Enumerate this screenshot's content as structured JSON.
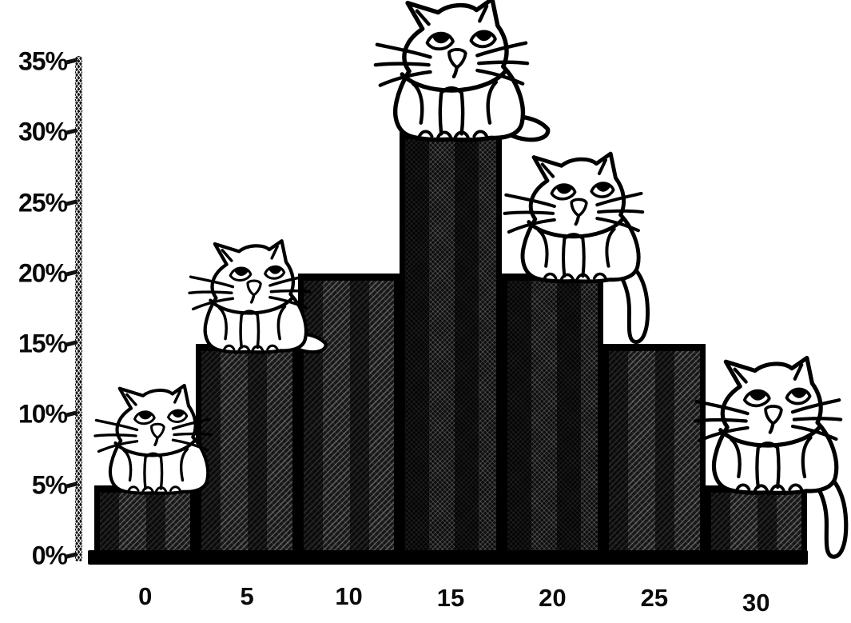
{
  "page": {
    "background_hex": "#ffffff",
    "ink_hex": "#0a0a0a",
    "style_note": "black-and-white photocopied halftone bar chart with cartoon cats sitting on bars"
  },
  "chart_data": {
    "type": "bar",
    "title": "",
    "xlabel": "",
    "ylabel": "",
    "categories": [
      "0",
      "5",
      "10",
      "15",
      "20",
      "25",
      "30"
    ],
    "values": [
      5,
      15,
      20,
      30,
      20,
      15,
      5
    ],
    "unit": "%",
    "ylim": [
      0,
      35
    ],
    "ytick_step": 5,
    "ytick_labels": [
      "0%",
      "5%",
      "10%",
      "15%",
      "20%",
      "25%",
      "30%",
      "35%"
    ],
    "xtick_labels": [
      "0",
      "5",
      "10",
      "15",
      "20",
      "25",
      "30"
    ],
    "grid": false,
    "legend": null,
    "bar_fill_hex": "#141414",
    "bar_texture": "diagonal crosshatch halftone",
    "decorations": {
      "description": "five cartoon cats sitting on top of the bars at 0, 5, 15, 20 and 30",
      "cats": [
        {
          "on_category": "0",
          "bar_value": 5,
          "tail": "hidden",
          "size": 150,
          "dx": 9
        },
        {
          "on_category": "5",
          "bar_value": 15,
          "tail": "side",
          "size": 155,
          "dx": 2
        },
        {
          "on_category": "15",
          "bar_value": 30,
          "tail": "side",
          "size": 196,
          "dx": 0
        },
        {
          "on_category": "20",
          "bar_value": 20,
          "tail": "drape",
          "size": 178,
          "dx": 26
        },
        {
          "on_category": "30",
          "bar_value": 5,
          "tail": "drape",
          "size": 188,
          "dx": 14
        }
      ]
    }
  }
}
